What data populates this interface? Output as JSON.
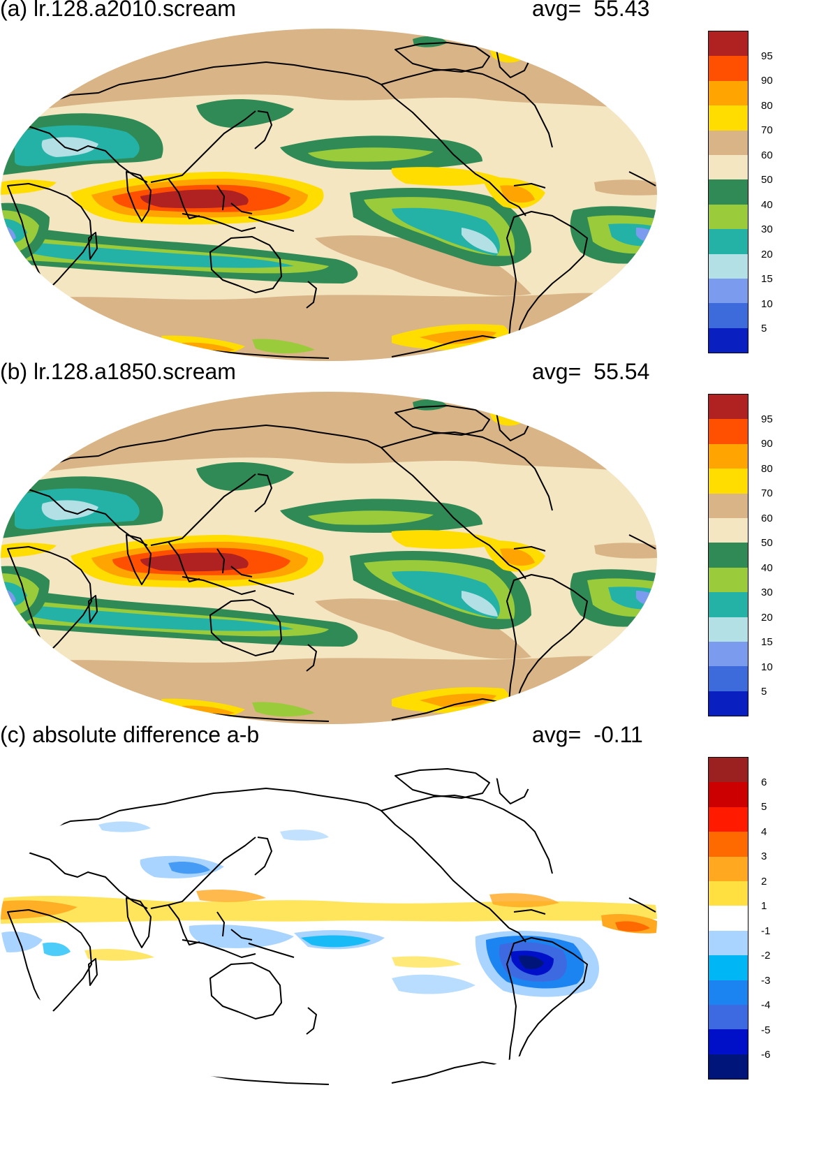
{
  "panels": [
    {
      "id": "a",
      "title": "(a) lr.128.a2010.scream",
      "avg_label": "avg=",
      "avg_value": "55.43",
      "colorbar": {
        "colors": [
          "#0a1fc0",
          "#3d6bdc",
          "#7b9cee",
          "#b2e0e4",
          "#25b2a6",
          "#9acb3a",
          "#2f8a55",
          "#f5e6c2",
          "#d8b487",
          "#ffdd00",
          "#ffa400",
          "#ff4f00",
          "#b02121"
        ],
        "labels": [
          "5",
          "10",
          "15",
          "20",
          "30",
          "40",
          "50",
          "60",
          "70",
          "80",
          "90",
          "95"
        ]
      }
    },
    {
      "id": "b",
      "title": "(b) lr.128.a1850.scream",
      "avg_label": "avg=",
      "avg_value": "55.54",
      "colorbar": {
        "colors": [
          "#0a1fc0",
          "#3d6bdc",
          "#7b9cee",
          "#b2e0e4",
          "#25b2a6",
          "#9acb3a",
          "#2f8a55",
          "#f5e6c2",
          "#d8b487",
          "#ffdd00",
          "#ffa400",
          "#ff4f00",
          "#b02121"
        ],
        "labels": [
          "5",
          "10",
          "15",
          "20",
          "30",
          "40",
          "50",
          "60",
          "70",
          "80",
          "90",
          "95"
        ]
      }
    },
    {
      "id": "c",
      "title": "(c) absolute difference a-b",
      "avg_label": "avg=",
      "avg_value": "-0.11",
      "colorbar": {
        "colors": [
          "#00157a",
          "#0010c8",
          "#3d6ae0",
          "#1c84f0",
          "#00b6f5",
          "#a8d4ff",
          "#ffffff",
          "#ffe040",
          "#ffa820",
          "#ff6a00",
          "#ff1a00",
          "#cc0000",
          "#9b2020"
        ],
        "labels": [
          "-6",
          "-5",
          "-4",
          "-3",
          "-2",
          "-1",
          "1",
          "2",
          "3",
          "4",
          "5",
          "6"
        ]
      }
    }
  ]
}
